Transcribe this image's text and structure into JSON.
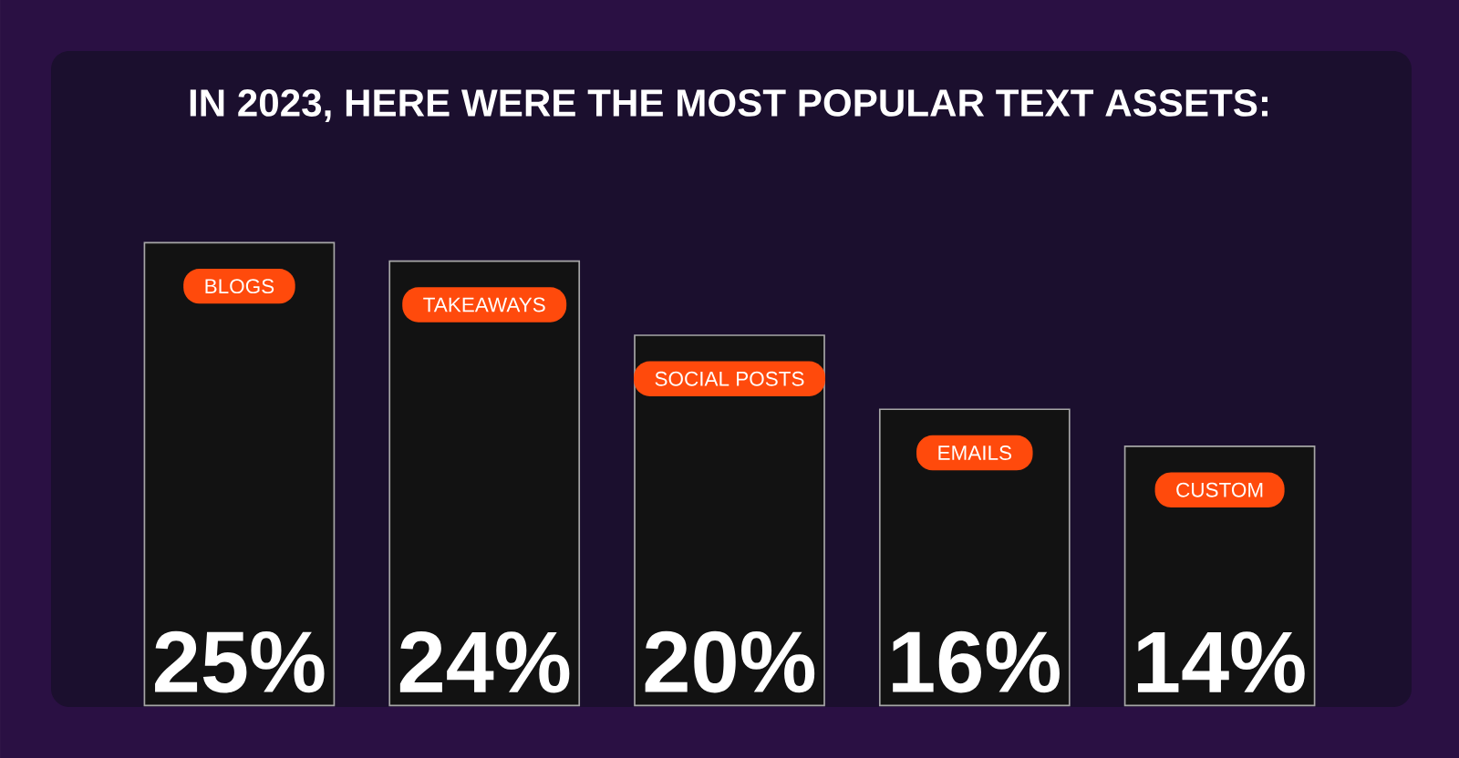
{
  "chart_data": {
    "type": "bar",
    "title": "IN 2023, HERE WERE THE MOST POPULAR TEXT ASSETS:",
    "categories": [
      "BLOGS",
      "TAKEAWAYS",
      "SOCIAL POSTS",
      "EMAILS",
      "CUSTOM"
    ],
    "values": [
      25,
      24,
      20,
      16,
      14
    ],
    "value_labels": [
      "25%",
      "24%",
      "20%",
      "16%",
      "14%"
    ],
    "color": "#121212"
  }
}
